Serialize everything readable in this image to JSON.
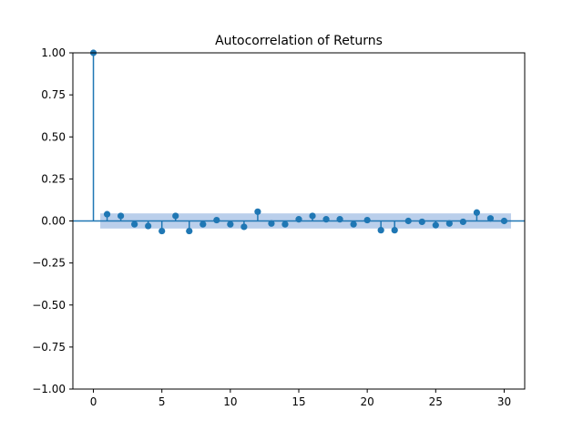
{
  "chart_data": {
    "type": "stem",
    "title": "Autocorrelation of Returns",
    "xlabel": "",
    "ylabel": "",
    "xlim": [
      -1.5,
      31.5
    ],
    "ylim": [
      -1.0,
      1.0
    ],
    "xticks": [
      "0",
      "5",
      "10",
      "15",
      "20",
      "25",
      "30"
    ],
    "yticks": [
      "−1.00",
      "−0.75",
      "−0.50",
      "−0.25",
      "0.00",
      "0.25",
      "0.50",
      "0.75",
      "1.00"
    ],
    "series": [
      {
        "x": [
          0,
          1,
          2,
          3,
          4,
          5,
          6,
          7,
          8,
          9,
          10,
          11,
          12,
          13,
          14,
          15,
          16,
          17,
          18,
          19,
          20,
          21,
          22,
          23,
          24,
          25,
          26,
          27,
          28,
          29,
          30
        ],
        "values": [
          1.0,
          0.04,
          0.03,
          -0.02,
          -0.03,
          -0.06,
          0.03,
          -0.06,
          -0.02,
          0.005,
          -0.02,
          -0.035,
          0.055,
          -0.015,
          -0.02,
          0.01,
          0.03,
          0.01,
          0.01,
          -0.02,
          0.005,
          -0.055,
          -0.055,
          0.0,
          -0.005,
          -0.025,
          -0.015,
          -0.005,
          0.05,
          0.015,
          0.0
        ]
      }
    ],
    "confidence_band": {
      "x_from": 0.5,
      "x_to": 30.5,
      "lower": -0.045,
      "upper": 0.045
    },
    "grid": false,
    "colors": {
      "marker": "#1f77b4",
      "band": "#aec7e8",
      "axis": "#000000"
    }
  }
}
